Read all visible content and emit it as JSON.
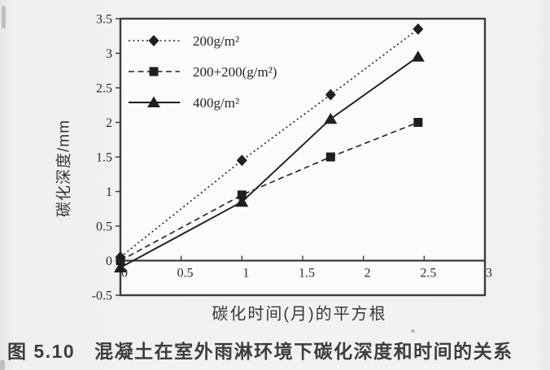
{
  "page": {
    "background_color": "#f1f0ee",
    "caption_number": "图 5.10",
    "caption_text": "混凝土在室外雨淋环境下碳化深度和时间的关系"
  },
  "chart_data": {
    "type": "line",
    "title": "",
    "xlabel": "碳化时间(月)的平方根",
    "ylabel": "碳化深度/mm",
    "xlim": [
      0,
      3
    ],
    "ylim": [
      -0.5,
      3.5
    ],
    "xticks": [
      0,
      0.5,
      1,
      1.5,
      2,
      2.5,
      3
    ],
    "yticks": [
      -0.5,
      0,
      0.5,
      1,
      1.5,
      2,
      2.5,
      3,
      3.5
    ],
    "x_axis_at_y": 0,
    "grid": false,
    "legend_position": "top-left-inside",
    "x": [
      0,
      1,
      1.73,
      2.45
    ],
    "series": [
      {
        "name": "200g/m²",
        "marker": "diamond",
        "line_style": "dotted",
        "values": [
          0.05,
          1.45,
          2.4,
          3.35
        ]
      },
      {
        "name": "200+200(g/m²)",
        "marker": "square",
        "line_style": "dashed",
        "values": [
          0,
          0.95,
          1.5,
          2.0
        ]
      },
      {
        "name": "400g/m²",
        "marker": "triangle",
        "line_style": "solid",
        "values": [
          -0.1,
          0.85,
          2.05,
          2.95
        ]
      }
    ],
    "ink_color": "#1f1f1f",
    "frame_color": "#3c3c3c",
    "plot_bg_color": "#fbfbfa"
  }
}
